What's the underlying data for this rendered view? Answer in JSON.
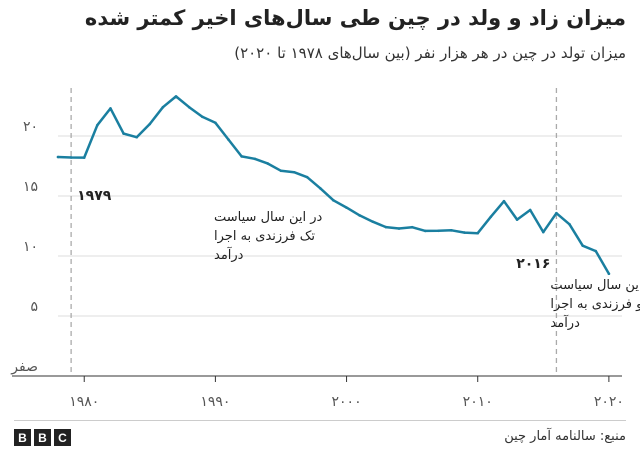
{
  "header": {
    "title": "میزان زاد و ولد در چین طی سال‌های اخیر کمتر شده",
    "subtitle": "میزان تولد در چین در هر هزار نفر (بین سال‌های ۱۹۷۸ تا ۲۰۲۰)"
  },
  "footer": {
    "logo_letters": [
      "B",
      "B",
      "C"
    ],
    "source": "منبع: سالنامه آمار چین"
  },
  "chart_data": {
    "type": "line",
    "title": "میزان زاد و ولد در چین طی سال‌های اخیر کمتر شده",
    "subtitle": "میزان تولد در چین در هر هزار نفر (بین سال‌های ۱۹۷۸ تا ۲۰۲۰)",
    "xlabel": "",
    "ylabel": "",
    "xlim": [
      1978,
      2021
    ],
    "ylim": [
      0,
      24
    ],
    "grid": "horizontal",
    "line_color": "#1a7fa0",
    "x_ticks": [
      {
        "value": 1980,
        "label": "۱۹۸۰"
      },
      {
        "value": 1990,
        "label": "۱۹۹۰"
      },
      {
        "value": 2000,
        "label": "۲۰۰۰"
      },
      {
        "value": 2010,
        "label": "۲۰۱۰"
      },
      {
        "value": 2020,
        "label": "۲۰۲۰"
      }
    ],
    "y_ticks": [
      {
        "value": 0,
        "label": "صفر"
      },
      {
        "value": 5,
        "label": "۵"
      },
      {
        "value": 10,
        "label": "۱۰"
      },
      {
        "value": 15,
        "label": "۱۵"
      },
      {
        "value": 20,
        "label": "۲۰"
      }
    ],
    "series": [
      {
        "x": [
          1978,
          1979,
          1980,
          1981,
          1982,
          1983,
          1984,
          1985,
          1986,
          1987,
          1988,
          1989,
          1990,
          1991,
          1992,
          1993,
          1994,
          1995,
          1996,
          1997,
          1998,
          1999,
          2000,
          2001,
          2002,
          2003,
          2004,
          2005,
          2006,
          2007,
          2008,
          2009,
          2010,
          2011,
          2012,
          2013,
          2014,
          2015,
          2016,
          2017,
          2018,
          2019,
          2020
        ],
        "y": [
          18.25,
          18.21,
          18.2,
          20.9,
          22.3,
          20.2,
          19.9,
          21.0,
          22.4,
          23.3,
          22.4,
          21.6,
          21.1,
          19.7,
          18.3,
          18.1,
          17.7,
          17.1,
          16.98,
          16.57,
          15.64,
          14.64,
          14.03,
          13.38,
          12.86,
          12.41,
          12.29,
          12.4,
          12.09,
          12.1,
          12.14,
          11.95,
          11.9,
          13.27,
          14.57,
          13.03,
          13.83,
          11.99,
          13.57,
          12.64,
          10.86,
          10.41,
          8.52
        ]
      }
    ],
    "annotations": [
      {
        "x": 1979,
        "year_label": "۱۹۷۹",
        "lines": [
          "در این سال سیاست",
          "تک فرزندی به اجرا",
          "درآمد"
        ]
      },
      {
        "x": 2016,
        "year_label": "۲۰۱۶",
        "lines": [
          "در این سال سیاست",
          "دو فرزندی به اجرا",
          "درآمد"
        ]
      }
    ]
  }
}
